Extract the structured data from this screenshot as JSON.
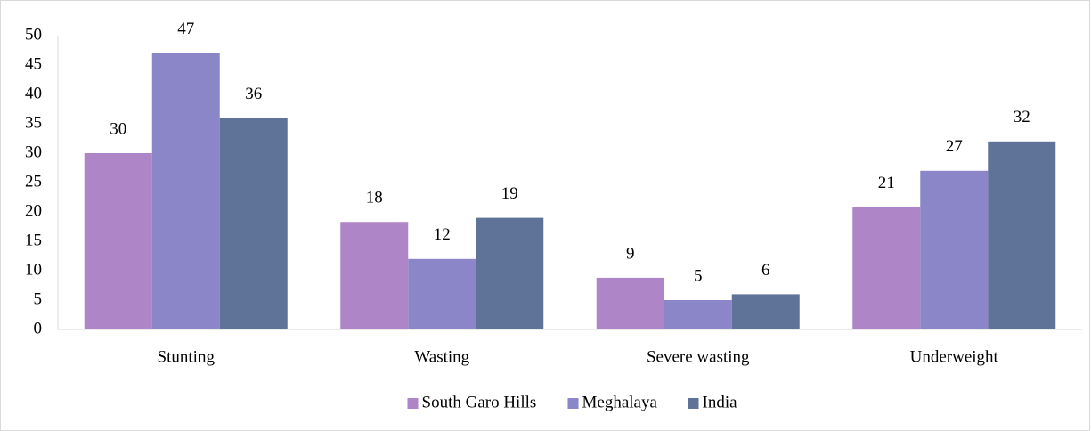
{
  "chart_data": {
    "type": "bar",
    "categories": [
      "Stunting",
      "Wasting",
      "Severe wasting",
      "Underweight"
    ],
    "series": [
      {
        "name": "South Garo Hills",
        "color": "#ae86c7",
        "values": [
          30,
          18.3,
          8.8,
          20.8
        ],
        "value_labels": [
          "30",
          "18",
          "9",
          "21"
        ]
      },
      {
        "name": "Meghalaya",
        "color": "#8a86c8",
        "values": [
          47,
          12,
          5,
          27
        ],
        "value_labels": [
          "47",
          "12",
          "5",
          "27"
        ]
      },
      {
        "name": "India",
        "color": "#5f7399",
        "values": [
          36,
          19,
          6,
          32
        ],
        "value_labels": [
          "36",
          "19",
          "6",
          "32"
        ]
      }
    ],
    "ylim": [
      0,
      50
    ],
    "yticks": [
      0,
      5,
      10,
      15,
      20,
      25,
      30,
      35,
      40,
      45,
      50
    ],
    "legend": "bottom"
  }
}
